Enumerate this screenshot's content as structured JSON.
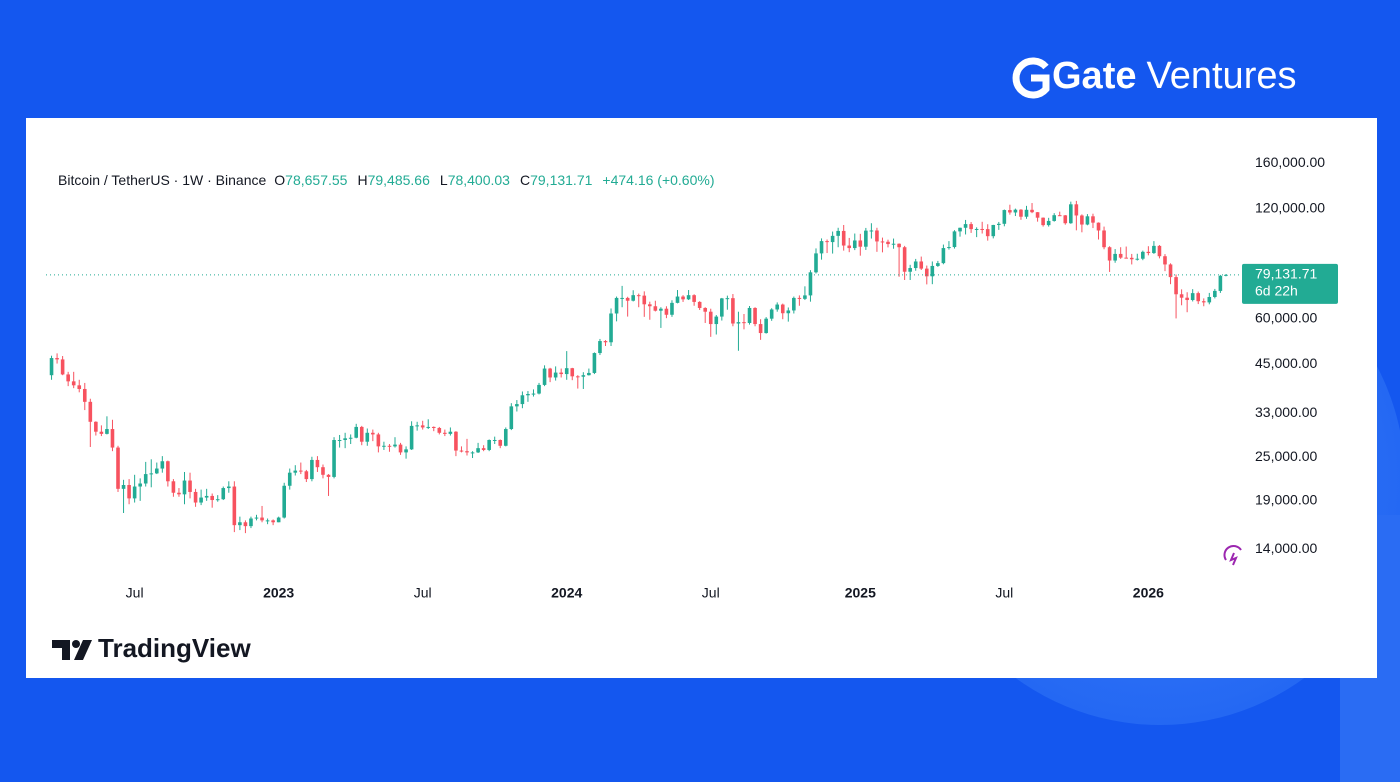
{
  "brand": {
    "name": "Gate",
    "suffix": "Ventures"
  },
  "footer": {
    "logo_text": "TradingView"
  },
  "chart_data": {
    "type": "candlestick",
    "header": {
      "symbol": "Bitcoin / TetherUS · 1W · Binance",
      "o": "O",
      "open": "78,657.55",
      "h": "H",
      "high": "79,485.66",
      "l": "L",
      "low": "78,400.03",
      "c": "C",
      "close": "79,131.71",
      "change": "+474.16 (+0.60%)"
    },
    "open": [
      42000,
      46800,
      46400,
      42200,
      40400,
      39400,
      38500,
      35500,
      31300,
      29400,
      29000,
      29900,
      26600,
      20500,
      21000,
      19300,
      20800,
      21200,
      22500,
      22600,
      23300,
      24400,
      21500,
      20000,
      19800,
      21600,
      20100,
      18800,
      19400,
      19600,
      19100,
      19200,
      20600,
      20800,
      16300,
      16600,
      16200,
      17000,
      17100,
      16800,
      16800,
      16600,
      17100,
      20900,
      22700,
      23000,
      22900,
      21800,
      24600,
      23500,
      22400,
      22100,
      27900,
      27900,
      28200,
      28300,
      30300,
      27600,
      29200,
      28900,
      26800,
      26900,
      26800,
      27100,
      25800,
      26300,
      30500,
      30600,
      30200,
      30300,
      30100,
      29200,
      29000,
      29400,
      26100,
      26000,
      25800,
      25800,
      26500,
      26200,
      27900,
      27900,
      26900,
      29900,
      34500,
      35000,
      37000,
      37300,
      37400,
      39500,
      43800,
      41400,
      42700,
      42300,
      43900,
      41700,
      41600,
      42000,
      42600,
      48300,
      52100,
      51700,
      62000,
      68400,
      68400,
      67200,
      69600,
      69400,
      65700,
      64900,
      63100,
      63900,
      61500,
      66300,
      69000,
      67800,
      69600,
      66700,
      64200,
      62700,
      58000,
      60800,
      68200,
      68300,
      58200,
      58700,
      58400,
      64200,
      58000,
      54800,
      60000,
      63600,
      65600,
      62100,
      63200,
      68400,
      68000,
      69500,
      80400,
      90600,
      97900,
      97300,
      101200,
      104400,
      95200,
      93700,
      98300,
      94500,
      104600,
      104700,
      97700,
      97500,
      96100,
      96300,
      94200,
      80700,
      82600,
      86100,
      82300,
      78400,
      83700,
      85200,
      93700,
      94300,
      104100,
      106500,
      109000,
      105600,
      105700,
      105600,
      101000,
      108400,
      109200,
      119100,
      117300,
      119400,
      114200,
      119300,
      117500,
      113500,
      108300,
      111200,
      115300,
      115200,
      109600,
      123500,
      115100,
      108700,
      114500,
      110000,
      104700,
      94200,
      86600,
      90300,
      88200,
      88100,
      87300,
      87600,
      91500,
      90800,
      95000,
      89000,
      84500,
      78000,
      70000,
      68500,
      67500,
      70500,
      67000,
      66500,
      68800,
      71500,
      78657.55
    ],
    "high": [
      47500,
      48200,
      47400,
      42900,
      42900,
      40800,
      40000,
      36200,
      31400,
      30600,
      32400,
      31700,
      26900,
      21700,
      21800,
      22400,
      21900,
      24300,
      24700,
      24200,
      25200,
      24500,
      21800,
      20600,
      22800,
      22700,
      20500,
      20400,
      20500,
      19900,
      19700,
      20800,
      21500,
      21500,
      17200,
      16800,
      17200,
      17400,
      18400,
      17000,
      16900,
      17200,
      21300,
      23300,
      23800,
      24200,
      23100,
      25100,
      25200,
      23900,
      22500,
      28400,
      28800,
      29200,
      28900,
      30900,
      30500,
      30000,
      29800,
      29200,
      27600,
      27200,
      28400,
      27400,
      26800,
      31400,
      31300,
      31500,
      31800,
      30400,
      30300,
      29800,
      30200,
      29500,
      26800,
      28100,
      26000,
      27400,
      27000,
      28000,
      28500,
      28000,
      30200,
      35200,
      35900,
      37900,
      38000,
      38400,
      40000,
      44700,
      44000,
      44400,
      43800,
      48900,
      44000,
      42000,
      42800,
      43800,
      48500,
      52800,
      52400,
      64000,
      69000,
      73800,
      68900,
      71800,
      70300,
      71300,
      66800,
      67200,
      64500,
      64900,
      67400,
      71900,
      69600,
      71900,
      70000,
      67000,
      64500,
      63900,
      61400,
      68400,
      69400,
      70100,
      62700,
      61800,
      65000,
      64500,
      59800,
      60600,
      64100,
      66500,
      66000,
      64400,
      69000,
      69500,
      73600,
      81500,
      93500,
      99600,
      98900,
      104000,
      106500,
      108400,
      99900,
      102700,
      102500,
      106400,
      109600,
      106500,
      100100,
      98800,
      99500,
      96500,
      95000,
      84300,
      87500,
      88800,
      83900,
      86100,
      86400,
      95800,
      97900,
      104900,
      106600,
      111900,
      110400,
      106800,
      110600,
      108900,
      108500,
      110500,
      119500,
      123200,
      120200,
      119800,
      122300,
      124500,
      117600,
      113700,
      113400,
      116800,
      117900,
      115400,
      125600,
      126200,
      115900,
      116100,
      116400,
      110200,
      107300,
      94800,
      93100,
      94200,
      94600,
      90300,
      90400,
      92200,
      94800,
      97900,
      95500,
      90200,
      85100,
      79300,
      72200,
      70900,
      72300,
      71200,
      68200,
      70600,
      72400,
      79100,
      79485.66
    ],
    "low": [
      40800,
      45200,
      42000,
      39200,
      38700,
      37700,
      33700,
      26700,
      28700,
      28600,
      28900,
      26000,
      20100,
      17600,
      18600,
      18800,
      19000,
      20800,
      20700,
      22500,
      22700,
      20800,
      19500,
      19500,
      18600,
      19300,
      18300,
      18500,
      19000,
      18200,
      18900,
      19100,
      20000,
      15600,
      15800,
      15500,
      16000,
      16800,
      16600,
      16400,
      16300,
      16600,
      17000,
      20400,
      22300,
      22500,
      21400,
      21500,
      22800,
      21900,
      19600,
      21900,
      26600,
      26500,
      27200,
      28200,
      27000,
      26900,
      27700,
      25800,
      26200,
      25900,
      26600,
      25400,
      24800,
      26200,
      29600,
      29800,
      29900,
      29500,
      28900,
      28600,
      28700,
      25200,
      25800,
      25300,
      24900,
      25700,
      26000,
      26000,
      27200,
      26500,
      26800,
      29700,
      33400,
      34100,
      35500,
      36700,
      37200,
      39200,
      40200,
      40600,
      41400,
      40800,
      40700,
      38600,
      38500,
      41900,
      42300,
      47700,
      50500,
      50500,
      59000,
      64500,
      60800,
      66900,
      64500,
      60700,
      59600,
      62800,
      56600,
      60200,
      60700,
      66100,
      66700,
      67500,
      65100,
      63400,
      58400,
      53500,
      54300,
      59300,
      63500,
      57200,
      49000,
      56100,
      57800,
      57200,
      52500,
      54600,
      59200,
      62700,
      59800,
      58900,
      62000,
      65100,
      67500,
      66800,
      79800,
      87100,
      90800,
      90500,
      94200,
      92200,
      91300,
      92500,
      89300,
      92600,
      99500,
      91500,
      91200,
      94100,
      93300,
      78200,
      76600,
      76600,
      81200,
      81600,
      74500,
      74600,
      83200,
      84600,
      92800,
      93400,
      100700,
      102100,
      103100,
      100400,
      102700,
      98200,
      99600,
      105100,
      107500,
      115700,
      114700,
      112000,
      112700,
      116800,
      110700,
      107300,
      107300,
      110700,
      114700,
      108600,
      109200,
      104800,
      103500,
      108200,
      106300,
      98900,
      93000,
      80600,
      85400,
      87500,
      87700,
      84500,
      86600,
      86800,
      89500,
      90300,
      87800,
      81000,
      74600,
      60100,
      65300,
      62500,
      66900,
      65800,
      64900,
      65700,
      68200,
      70600,
      78400.03
    ],
    "close": [
      46800,
      46400,
      42200,
      40400,
      39400,
      38500,
      35500,
      31300,
      29400,
      29000,
      29900,
      26600,
      20500,
      21000,
      19300,
      20800,
      21200,
      22500,
      22600,
      23300,
      24400,
      21500,
      20000,
      19800,
      21600,
      20100,
      18800,
      19400,
      19600,
      19100,
      19200,
      20600,
      20800,
      16300,
      16600,
      16200,
      17000,
      17100,
      16800,
      16800,
      16600,
      17100,
      20900,
      22700,
      23000,
      22900,
      21800,
      24600,
      23500,
      22400,
      22100,
      27900,
      27900,
      28200,
      28300,
      30300,
      27600,
      29200,
      28900,
      26800,
      26900,
      26800,
      27100,
      25800,
      26300,
      30500,
      30600,
      30200,
      30300,
      30100,
      29200,
      29000,
      29400,
      26100,
      26000,
      25800,
      25800,
      26500,
      26200,
      27900,
      27900,
      26900,
      29900,
      34500,
      35000,
      37000,
      37300,
      37400,
      39500,
      43800,
      41400,
      42700,
      42300,
      43900,
      41700,
      41600,
      42000,
      42600,
      48300,
      52100,
      51700,
      62000,
      68400,
      68400,
      67200,
      69600,
      69400,
      65700,
      64900,
      63100,
      63900,
      61500,
      66300,
      69000,
      67800,
      69600,
      66700,
      64200,
      62700,
      58000,
      60800,
      68200,
      68300,
      58200,
      58700,
      58400,
      64200,
      58000,
      54800,
      60000,
      63600,
      65600,
      62100,
      63200,
      68400,
      68000,
      69500,
      80400,
      90600,
      97900,
      97300,
      101200,
      104400,
      95200,
      93700,
      98300,
      94500,
      104600,
      104700,
      97700,
      97500,
      96100,
      96300,
      94200,
      80700,
      82600,
      86100,
      82300,
      78400,
      83700,
      85200,
      93700,
      94300,
      104100,
      106500,
      109000,
      105600,
      105700,
      105600,
      101000,
      108400,
      109200,
      119100,
      117300,
      119400,
      114200,
      119300,
      117500,
      113500,
      108300,
      111200,
      115300,
      115200,
      109600,
      123500,
      115100,
      108700,
      114500,
      110000,
      104700,
      94200,
      86600,
      90300,
      88200,
      88100,
      87300,
      87600,
      91500,
      90800,
      95000,
      89000,
      84500,
      78000,
      70000,
      68500,
      67500,
      70500,
      67000,
      66500,
      68800,
      71500,
      78657.55,
      79131.71
    ],
    "up_color": "#22ab94",
    "down_color": "#f7525f",
    "xlim": [
      -1,
      214
    ],
    "xticks": [
      {
        "value": 15,
        "label": "Jul"
      },
      {
        "value": 41,
        "label": "2023"
      },
      {
        "value": 67,
        "label": "Jul"
      },
      {
        "value": 93,
        "label": "2024"
      },
      {
        "value": 119,
        "label": "Jul"
      },
      {
        "value": 146,
        "label": "2025"
      },
      {
        "value": 172,
        "label": "Jul"
      },
      {
        "value": 198,
        "label": "2026"
      }
    ],
    "ylim": [
      11900,
      174000
    ],
    "ylog": true,
    "yticks": [
      {
        "value": 14000,
        "label": "14,000.00"
      },
      {
        "value": 19000,
        "label": "19,000.00"
      },
      {
        "value": 25000,
        "label": "25,000.00"
      },
      {
        "value": 33000,
        "label": "33,000.00"
      },
      {
        "value": 45000,
        "label": "45,000.00"
      },
      {
        "value": 60000,
        "label": "60,000.00"
      },
      {
        "value": 120000,
        "label": "120,000.00"
      },
      {
        "value": 160000,
        "label": "160,000.00"
      }
    ],
    "last_price": {
      "label": "79,131.71",
      "countdown": "6d 22h"
    }
  }
}
